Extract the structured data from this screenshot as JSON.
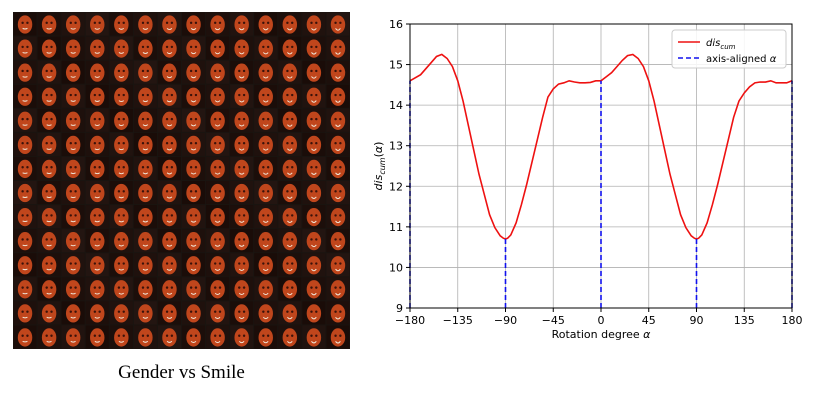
{
  "figure": {
    "caption": "Gender vs Smile",
    "face_grid": {
      "rows": 14,
      "cols": 14,
      "face_color": "#c0461c",
      "background_color": "#1a1410"
    }
  },
  "chart_data": {
    "type": "line",
    "xlim": [
      -180,
      180
    ],
    "ylim": [
      9,
      16
    ],
    "x_ticks": [
      -180,
      -135,
      -90,
      -45,
      0,
      45,
      90,
      135,
      180
    ],
    "x_tick_labels": [
      "−180",
      "−135",
      "−90",
      "−45",
      "0",
      "45",
      "90",
      "135",
      "180"
    ],
    "y_ticks": [
      9,
      10,
      11,
      12,
      13,
      14,
      15,
      16
    ],
    "y_tick_labels": [
      "9",
      "10",
      "11",
      "12",
      "13",
      "14",
      "15",
      "16"
    ],
    "xlabel": "Rotation degree α",
    "ylabel": "dis_cum(α)",
    "grid": true,
    "legend_position": "top-right",
    "series": [
      {
        "name": "dis_cum",
        "style": "solid",
        "color": "#ee1111",
        "x": [
          -180,
          -170,
          -160,
          -155,
          -150,
          -145,
          -140,
          -135,
          -130,
          -125,
          -120,
          -115,
          -110,
          -105,
          -100,
          -95,
          -92,
          -90,
          -88,
          -85,
          -80,
          -75,
          -70,
          -65,
          -60,
          -55,
          -50,
          -45,
          -40,
          -35,
          -30,
          -25,
          -20,
          -15,
          -10,
          -5,
          0,
          5,
          10,
          15,
          20,
          25,
          30,
          35,
          40,
          45,
          50,
          55,
          60,
          65,
          70,
          75,
          80,
          85,
          88,
          90,
          92,
          95,
          100,
          105,
          110,
          115,
          120,
          125,
          130,
          135,
          140,
          145,
          150,
          155,
          160,
          165,
          170,
          175,
          180
        ],
        "y": [
          14.6,
          14.75,
          15.05,
          15.2,
          15.25,
          15.15,
          14.95,
          14.6,
          14.1,
          13.5,
          12.9,
          12.3,
          11.8,
          11.3,
          10.98,
          10.78,
          10.72,
          10.7,
          10.72,
          10.8,
          11.1,
          11.55,
          12.05,
          12.6,
          13.15,
          13.7,
          14.2,
          14.4,
          14.52,
          14.55,
          14.6,
          14.57,
          14.55,
          14.55,
          14.56,
          14.6,
          14.6,
          14.7,
          14.8,
          14.95,
          15.1,
          15.22,
          15.25,
          15.15,
          14.95,
          14.6,
          14.1,
          13.5,
          12.9,
          12.3,
          11.8,
          11.3,
          10.98,
          10.78,
          10.72,
          10.7,
          10.72,
          10.8,
          11.1,
          11.55,
          12.05,
          12.6,
          13.15,
          13.7,
          14.1,
          14.3,
          14.45,
          14.55,
          14.57,
          14.57,
          14.6,
          14.55,
          14.55,
          14.55,
          14.6
        ]
      },
      {
        "name": "axis-aligned α",
        "style": "dashed",
        "color": "#1111ee",
        "x": [
          -180,
          -90,
          0,
          90,
          180
        ],
        "y": [
          14.6,
          10.7,
          14.6,
          10.7,
          14.6
        ]
      }
    ],
    "legend": [
      {
        "label_main": "dis",
        "label_sub": "cum",
        "style": "solid",
        "color": "#ee1111"
      },
      {
        "label_main": "axis-aligned α",
        "label_sub": "",
        "style": "dashed",
        "color": "#1111ee"
      }
    ]
  }
}
